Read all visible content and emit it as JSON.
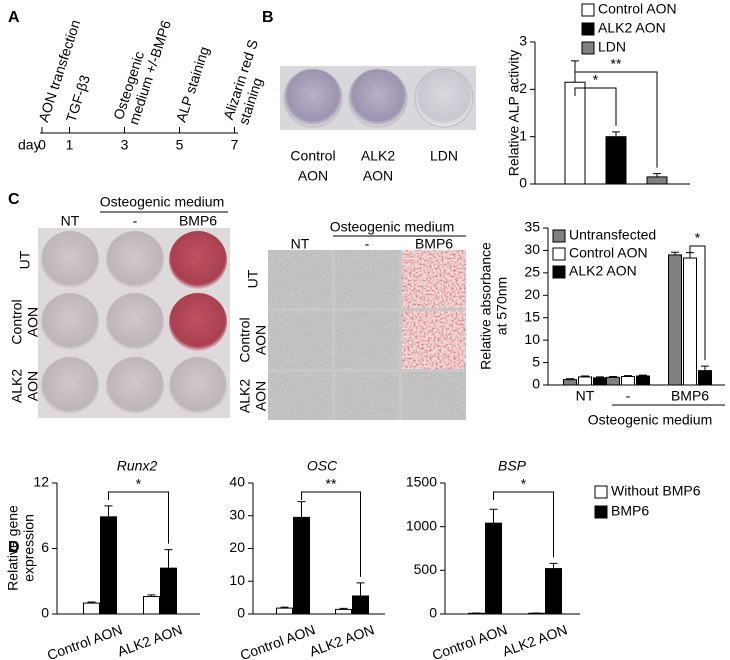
{
  "panel_labels": [
    "A",
    "B",
    "C",
    "D"
  ],
  "timeline": {
    "axis_label": "day",
    "events": [
      {
        "day": 0,
        "lines": [
          "AON transfection"
        ]
      },
      {
        "day": 1,
        "lines": [
          "TGF-β3"
        ]
      },
      {
        "day": 3,
        "lines": [
          "Osteogenic",
          "medium +/-BMP6"
        ]
      },
      {
        "day": 5,
        "lines": [
          "ALP staining"
        ]
      },
      {
        "day": 7,
        "lines": [
          "Alizarin red S",
          "staining"
        ]
      }
    ]
  },
  "alp_wells": {
    "labels": [
      [
        "Control",
        "AON"
      ],
      [
        "ALK2",
        "AON"
      ],
      [
        "LDN"
      ]
    ]
  },
  "alizarin_plate": {
    "header": "Osteogenic medium",
    "columns": [
      "NT",
      "-",
      "BMP6"
    ],
    "rows": [
      [
        "UT"
      ],
      [
        "Control",
        "AON"
      ],
      [
        "ALK2",
        "AON"
      ]
    ]
  },
  "microscopy": {
    "header": "Osteogenic medium",
    "columns": [
      "NT",
      "-",
      "BMP6"
    ],
    "rows": [
      [
        "UT"
      ],
      [
        "Control",
        "AON"
      ],
      [
        "ALK2",
        "AON"
      ]
    ]
  },
  "chart_data": [
    {
      "type": "bar",
      "ylabel": [
        "Relative ALP activity"
      ],
      "categories": [
        null
      ],
      "series": [
        {
          "name": "Control AON",
          "color": "#ffffff",
          "values": [
            2.15
          ],
          "errors": [
            0.45
          ]
        },
        {
          "name": "ALK2 AON",
          "color": "#000000",
          "values": [
            1.0
          ],
          "errors": [
            0.1
          ]
        },
        {
          "name": "LDN",
          "color": "#808080",
          "values": [
            0.15
          ],
          "errors": [
            0.07
          ]
        }
      ],
      "ylim": [
        0,
        3
      ],
      "yticks": [
        0,
        1,
        2,
        3
      ],
      "significance": [
        "*",
        "**"
      ]
    },
    {
      "type": "bar",
      "ylabel": [
        "Relative absorbance",
        "at 570nm"
      ],
      "xlabel": "Osteogenic medium",
      "categories": [
        "NT",
        "-",
        "BMP6"
      ],
      "series": [
        {
          "name": "Untransfected",
          "color": "#808080",
          "values": [
            1.2,
            1.7,
            29.0
          ],
          "errors": [
            0.2,
            0.2,
            0.6
          ]
        },
        {
          "name": "Control AON",
          "color": "#ffffff",
          "values": [
            1.8,
            1.9,
            28.3
          ],
          "errors": [
            0.2,
            0.2,
            1.2
          ]
        },
        {
          "name": "ALK2 AON",
          "color": "#000000",
          "values": [
            1.6,
            2.0,
            3.2
          ],
          "errors": [
            0.2,
            0.2,
            1.0
          ]
        }
      ],
      "ylim": [
        0,
        35
      ],
      "yticks": [
        0,
        5,
        10,
        15,
        20,
        25,
        30,
        35
      ],
      "significance": [
        "*"
      ]
    },
    {
      "type": "bar",
      "title": "Runx2",
      "ylabel": [
        "Relative gene",
        "expression"
      ],
      "categories": [
        "Control AON",
        "ALK2 AON"
      ],
      "series": [
        {
          "color": "#ffffff",
          "values": [
            1.0,
            1.6
          ],
          "errors": [
            0.1,
            0.15
          ]
        },
        {
          "color": "#000000",
          "values": [
            8.9,
            4.2
          ],
          "errors": [
            1.0,
            1.7
          ]
        }
      ],
      "ylim": [
        0,
        12
      ],
      "yticks": [
        0,
        6,
        12
      ],
      "significance": [
        "*"
      ]
    },
    {
      "type": "bar",
      "title": "OSC",
      "categories": [
        "Control AON",
        "ALK2 AON"
      ],
      "series": [
        {
          "color": "#ffffff",
          "values": [
            1.8,
            1.4
          ],
          "errors": [
            0.3,
            0.3
          ]
        },
        {
          "color": "#000000",
          "values": [
            29.5,
            5.5
          ],
          "errors": [
            4.8,
            4.0
          ]
        }
      ],
      "ylim": [
        0,
        40
      ],
      "yticks": [
        0,
        10,
        20,
        30,
        40
      ],
      "significance": [
        "**"
      ]
    },
    {
      "type": "bar",
      "title": "BSP",
      "categories": [
        "Control AON",
        "ALK2 AON"
      ],
      "series": [
        {
          "name": "Without BMP6",
          "color": "#ffffff",
          "values": [
            8,
            8
          ],
          "errors": [
            3,
            3
          ]
        },
        {
          "name": "BMP6",
          "color": "#000000",
          "values": [
            1040,
            520
          ],
          "errors": [
            160,
            60
          ]
        }
      ],
      "ylim": [
        0,
        1500
      ],
      "yticks": [
        0,
        500,
        1000,
        1500
      ],
      "significance": [
        "*"
      ]
    }
  ]
}
